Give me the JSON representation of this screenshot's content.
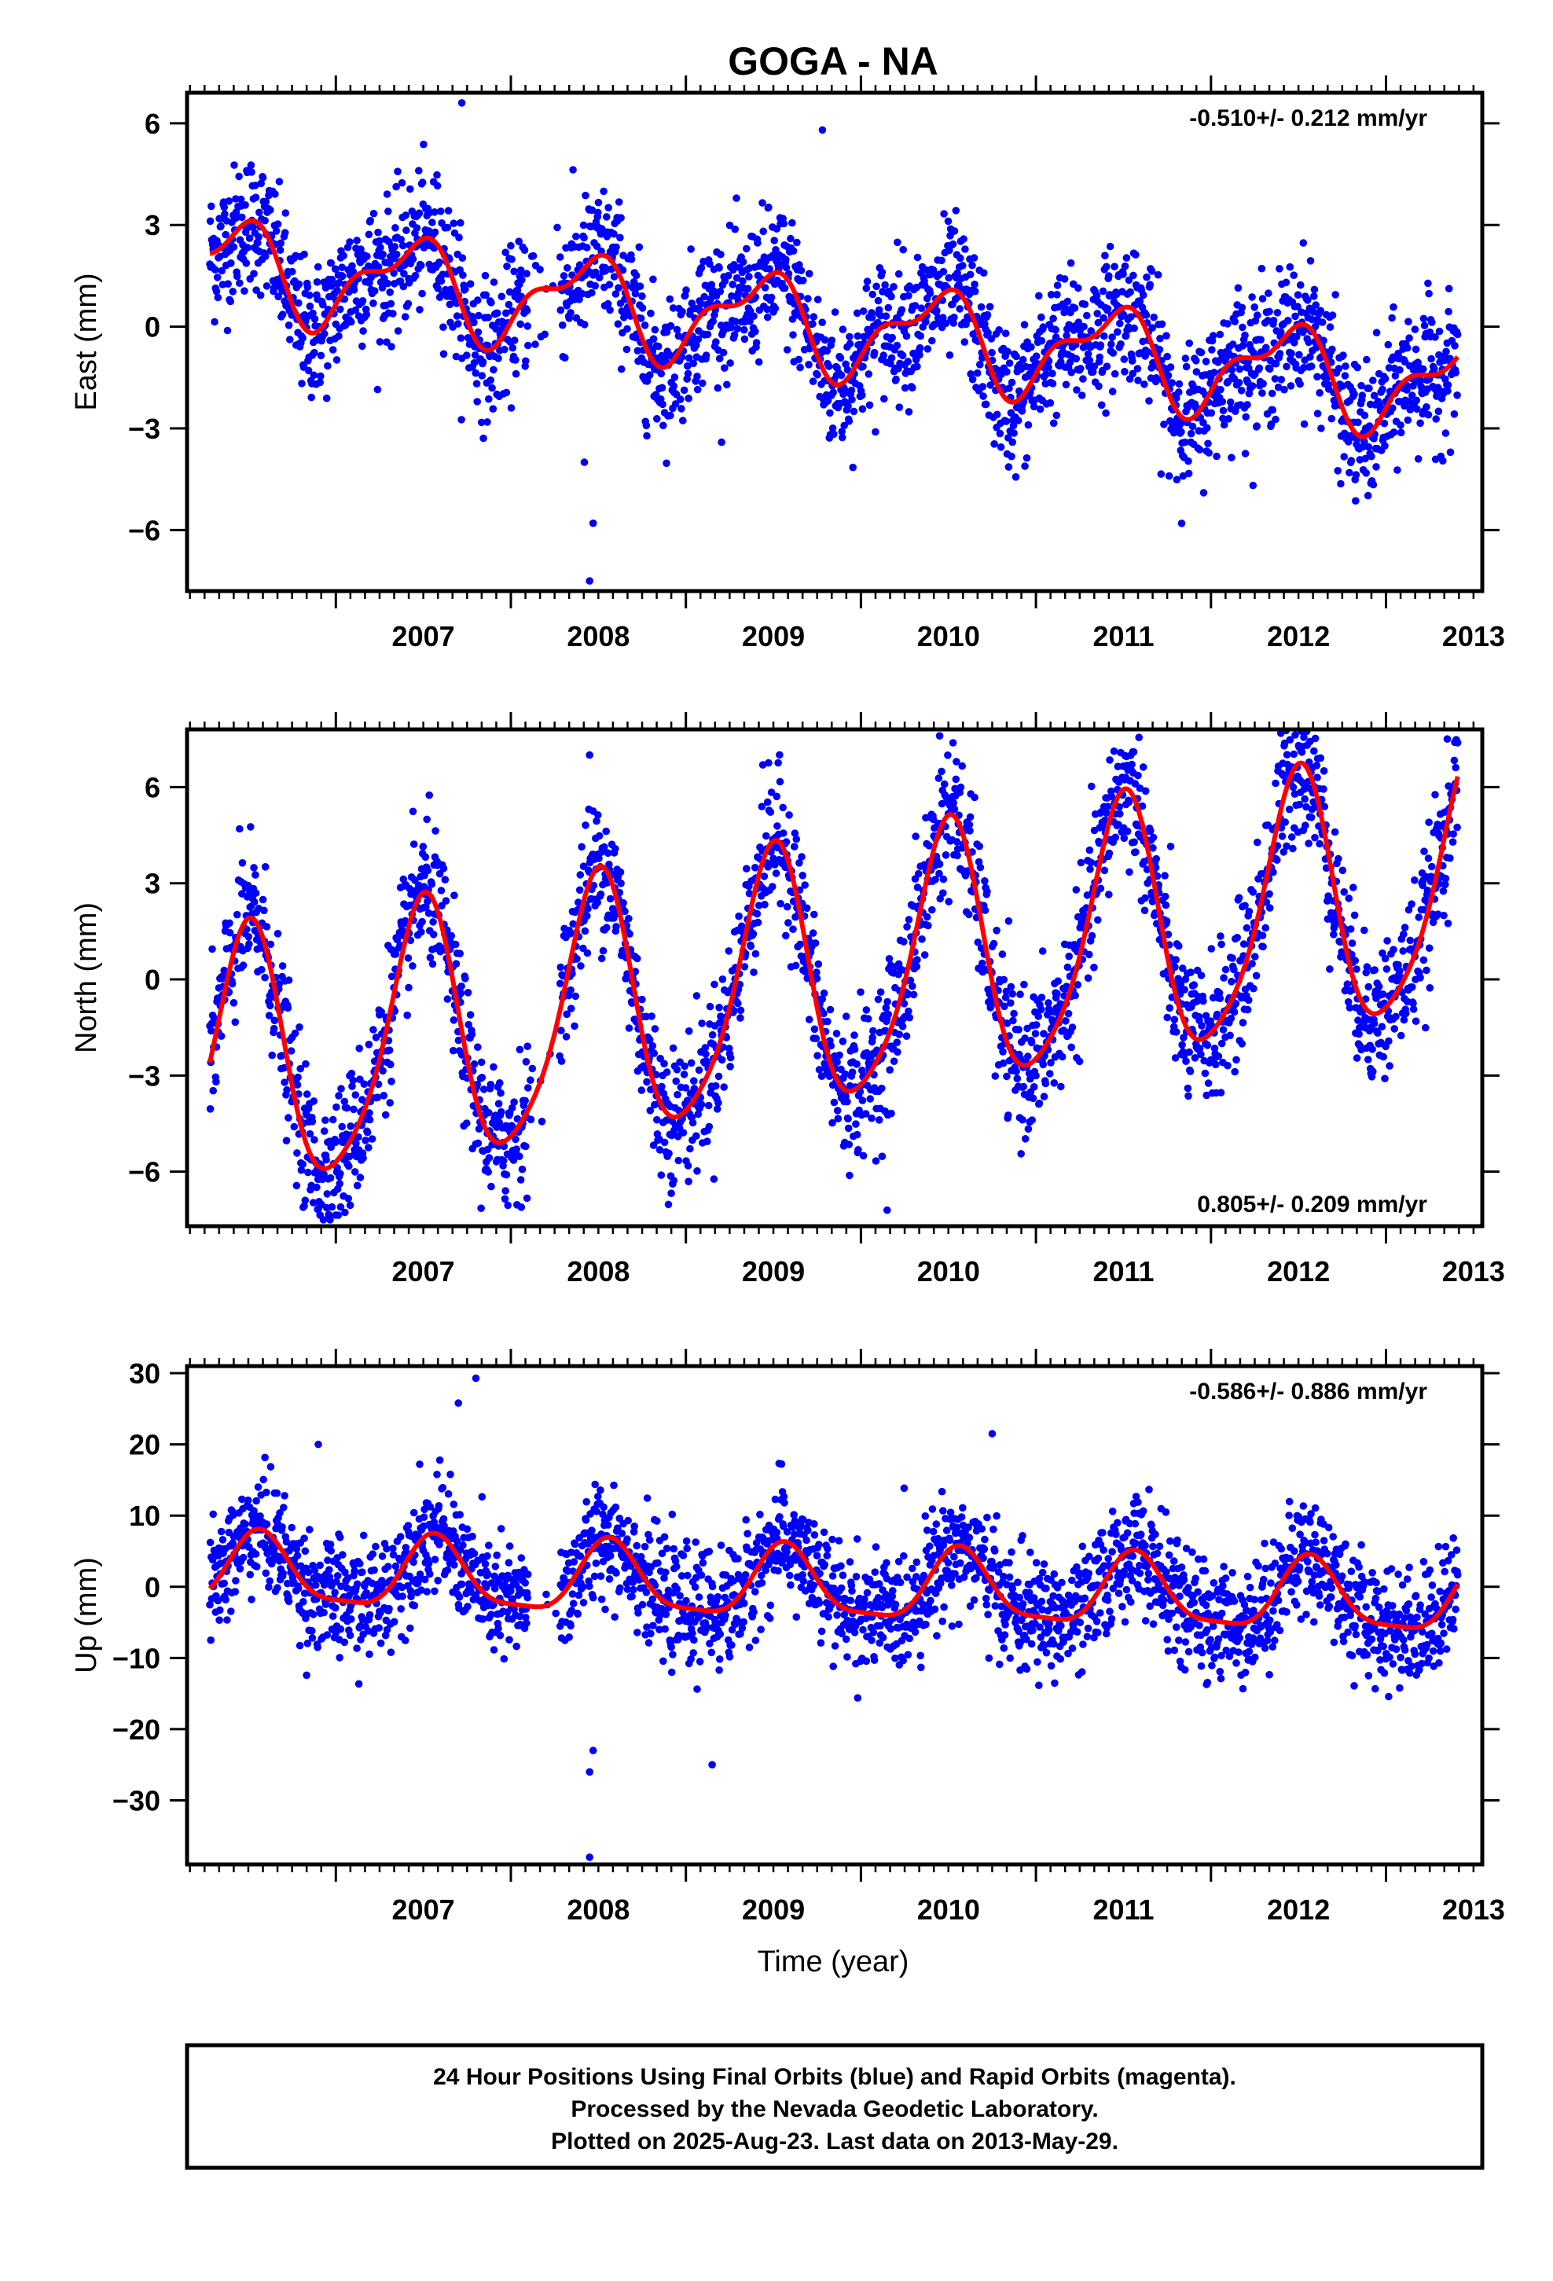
{
  "title": "GOGA - NA",
  "x_label": "Time (year)",
  "footer_lines": [
    "24 Hour Positions Using Final Orbits (blue) and Rapid Orbits (magenta).",
    "Processed by the Nevada Geodetic Laboratory.",
    "Plotted on 2025-Aug-23. Last data on 2013-May-29."
  ],
  "colors": {
    "points": "#0000ff",
    "fit": "#ff0000",
    "frame": "#000000"
  },
  "chart_data": [
    {
      "type": "scatter",
      "component": "east",
      "ylabel": "East (mm)",
      "rate_text": "-0.510+/- 0.212 mm/yr",
      "rate_position": "top-right",
      "xlim": [
        2006.15,
        2013.55
      ],
      "ylim": [
        -7.8,
        6.9
      ],
      "x_ticks": [
        2007,
        2008,
        2009,
        2010,
        2011,
        2012,
        2013
      ],
      "y_ticks": [
        6,
        3,
        0,
        -3,
        -6
      ],
      "y_tick_labels": [
        "6",
        "3",
        "0",
        "−3",
        "−6"
      ],
      "grid": false,
      "fit_model": {
        "offset": 0.0,
        "rate": -0.51,
        "ref_year": 2009.85,
        "annual_sin": 0.6,
        "annual_cos": -1.1,
        "semi_sin": 0.5,
        "semi_cos": 0.3
      },
      "noise_sd": 1.0,
      "outliers": [
        [
          2008.45,
          -7.5
        ],
        [
          2008.47,
          -5.8
        ],
        [
          2007.72,
          6.6
        ],
        [
          2009.78,
          5.8
        ],
        [
          2008.42,
          -4.0
        ]
      ]
    },
    {
      "type": "scatter",
      "component": "north",
      "ylabel": "North (mm)",
      "rate_text": "0.805+/- 0.209 mm/yr",
      "rate_position": "bottom-right",
      "xlim": [
        2006.15,
        2013.55
      ],
      "ylim": [
        -7.7,
        7.8
      ],
      "x_ticks": [
        2007,
        2008,
        2009,
        2010,
        2011,
        2012,
        2013
      ],
      "y_ticks": [
        6,
        3,
        0,
        -3,
        -6
      ],
      "y_tick_labels": [
        "6",
        "3",
        "0",
        "−3",
        "−6"
      ],
      "grid": false,
      "fit_model": {
        "offset": 0.0,
        "rate": 0.805,
        "ref_year": 2009.85,
        "annual_sin": 0.2,
        "annual_cos": -4.0,
        "semi_sin": 0.3,
        "semi_cos": 0.6
      },
      "noise_sd": 1.1,
      "outliers": [
        [
          2010.45,
          7.6
        ],
        [
          2013.35,
          7.5
        ],
        [
          2008.45,
          7.0
        ],
        [
          2010.15,
          -7.2
        ]
      ]
    },
    {
      "type": "scatter",
      "component": "up",
      "ylabel": "Up (mm)",
      "rate_text": "-0.586+/- 0.886 mm/yr",
      "rate_position": "top-right",
      "xlim": [
        2006.15,
        2013.55
      ],
      "ylim": [
        -39,
        31
      ],
      "x_ticks": [
        2007,
        2008,
        2009,
        2010,
        2011,
        2012,
        2013
      ],
      "y_ticks": [
        30,
        20,
        10,
        0,
        -10,
        -20,
        -30
      ],
      "y_tick_labels": [
        "30",
        "20",
        "10",
        "0",
        "−10",
        "−20",
        "−30"
      ],
      "grid": false,
      "fit_model": {
        "offset": 0.0,
        "rate": -0.586,
        "ref_year": 2009.85,
        "annual_sin": -2.0,
        "annual_cos": -4.5,
        "semi_sin": 0.8,
        "semi_cos": 1.0
      },
      "noise_sd": 4.0,
      "outliers": [
        [
          2008.45,
          -38
        ],
        [
          2008.45,
          -26
        ],
        [
          2008.47,
          -23
        ],
        [
          2009.15,
          -25
        ],
        [
          2007.7,
          25.8
        ],
        [
          2007.8,
          29.3
        ],
        [
          2006.9,
          20
        ],
        [
          2010.75,
          21.5
        ]
      ]
    }
  ]
}
